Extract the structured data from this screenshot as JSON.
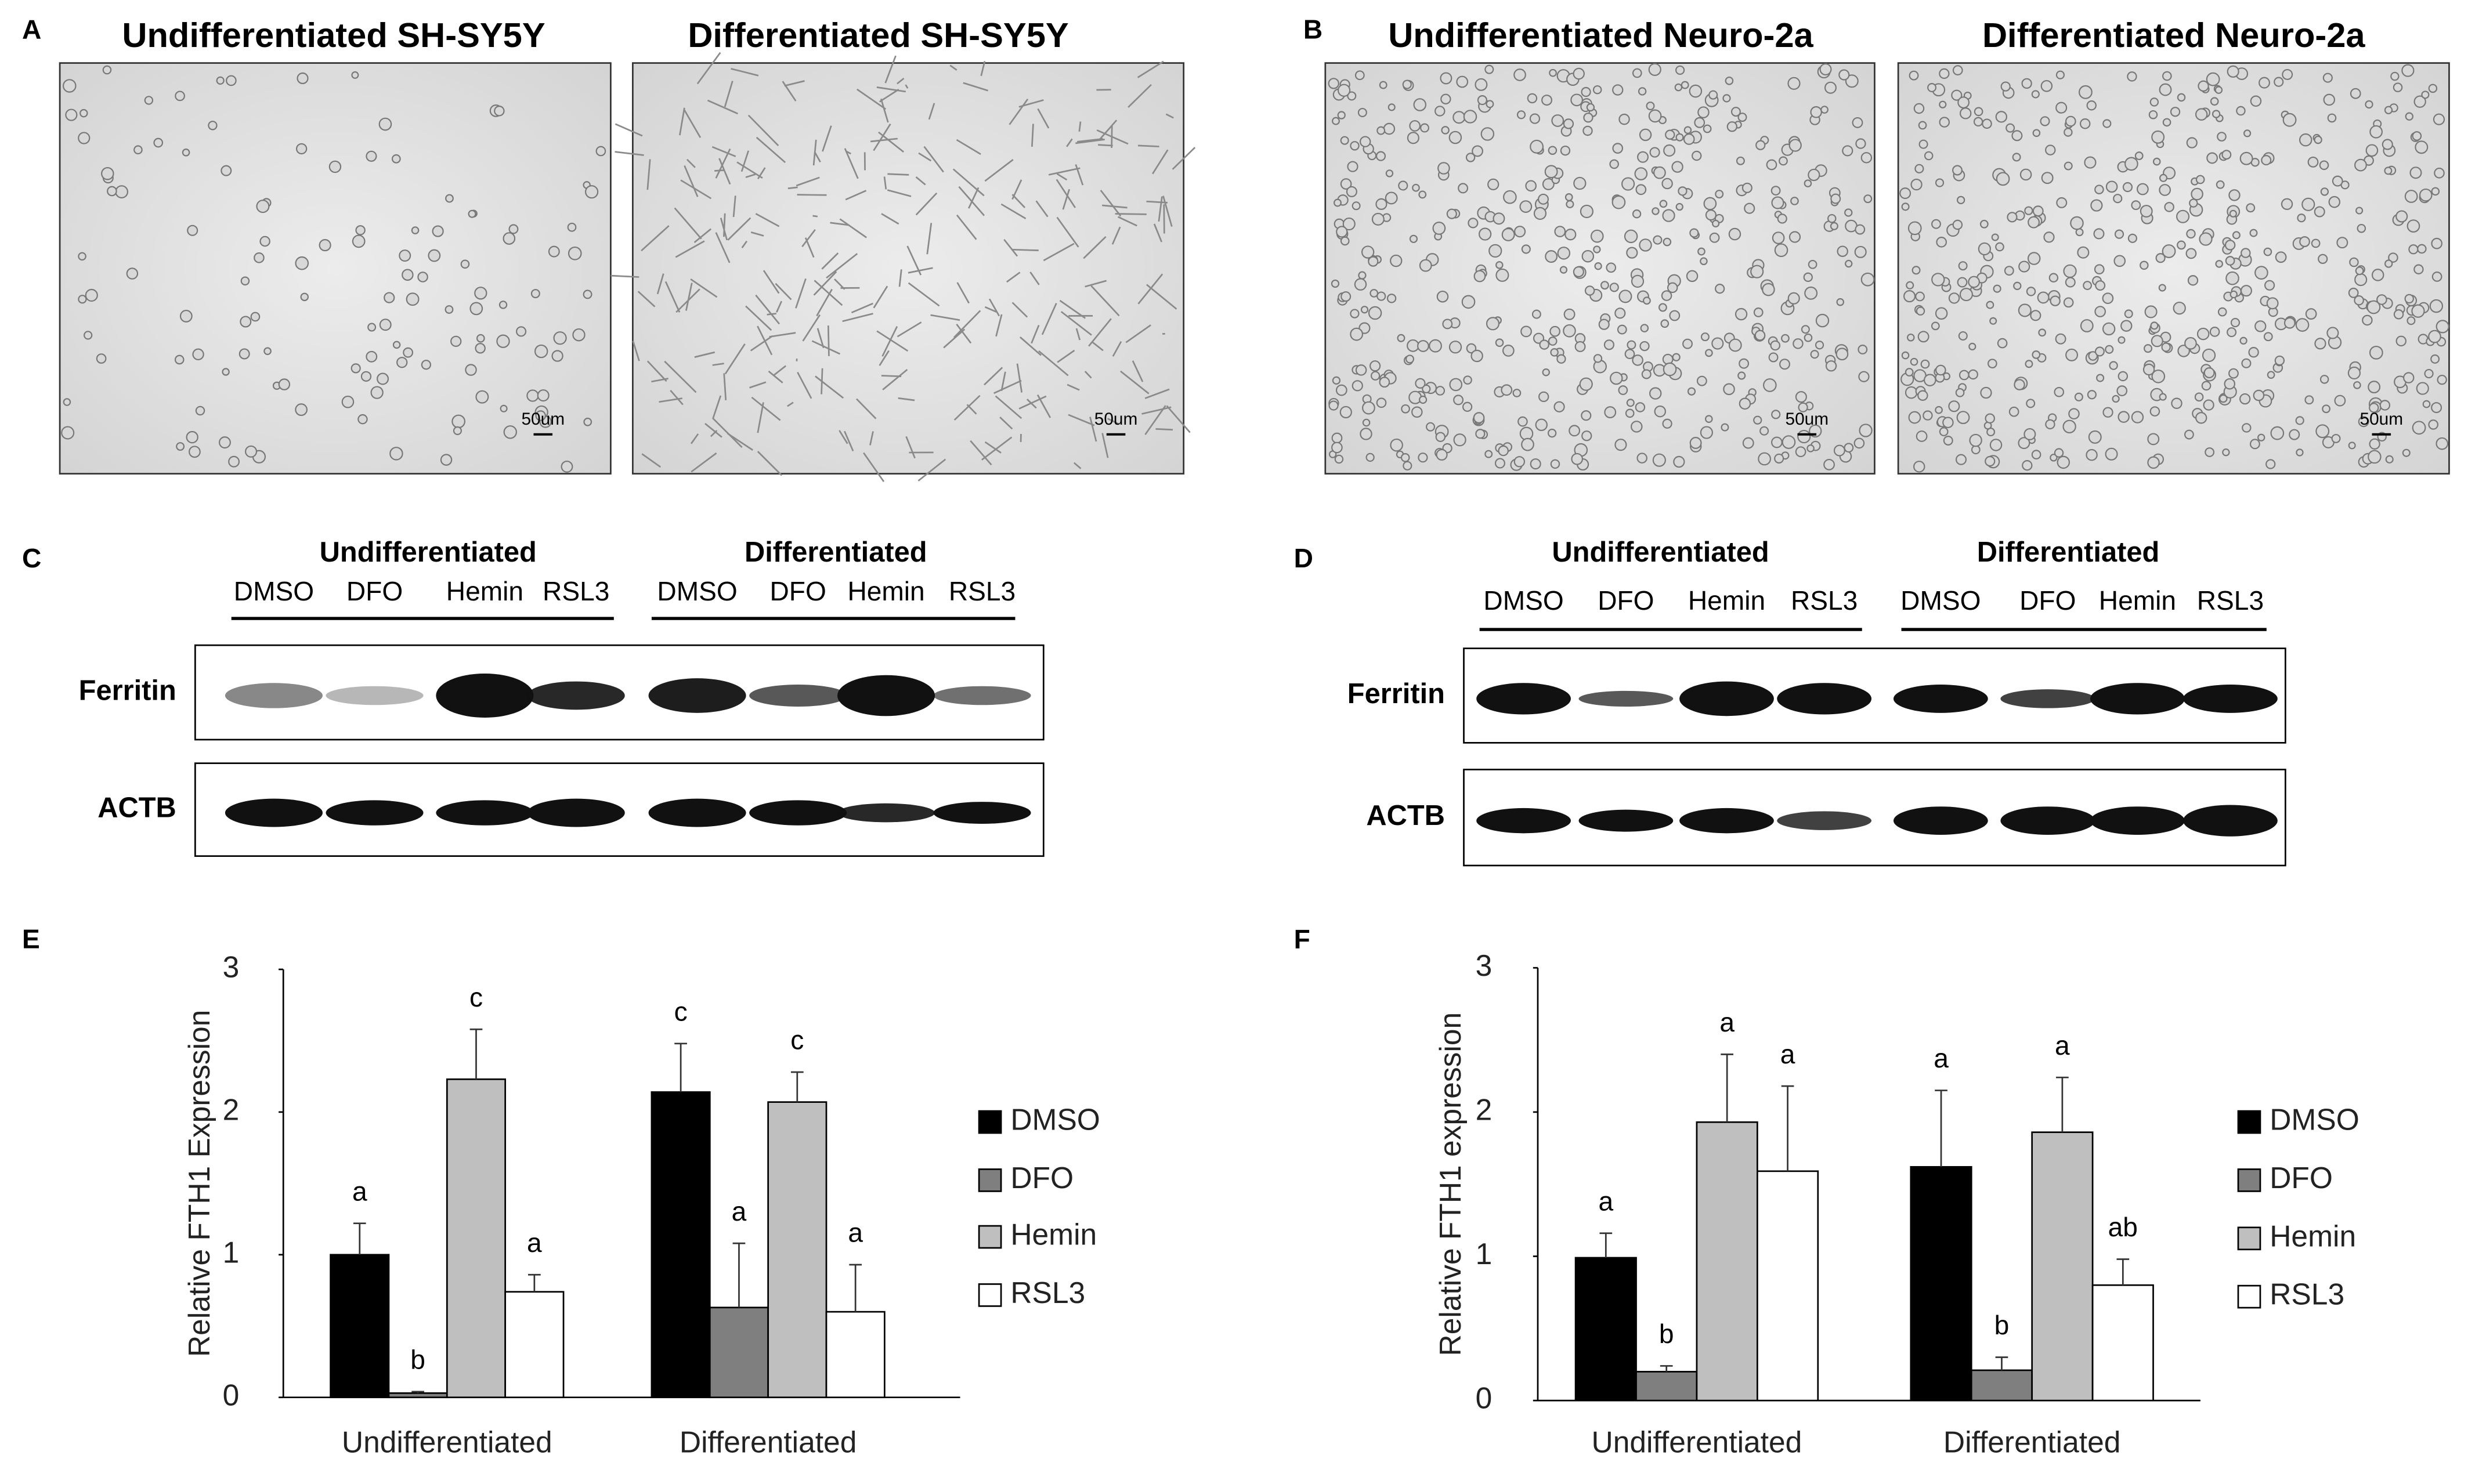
{
  "panel_labels": [
    "A",
    "B",
    "C",
    "D",
    "E",
    "F"
  ],
  "micrographs": [
    {
      "title": "Undifferentiated SH-SY5Y",
      "scale": "50um"
    },
    {
      "title": "Differentiated SH-SY5Y",
      "scale": "50um"
    },
    {
      "title": "Undifferentiated Neuro-2a",
      "scale": "50um"
    },
    {
      "title": "Differentiated Neuro-2a",
      "scale": "50um"
    }
  ],
  "blots": [
    {
      "groups": [
        "Undifferentiated",
        "Differentiated"
      ],
      "lanes": [
        "DMSO",
        "DFO",
        "Hemin",
        "RSL3",
        "DMSO",
        "DFO",
        "Hemin",
        "RSL3"
      ],
      "rows": [
        "Ferritin",
        "ACTB"
      ]
    },
    {
      "groups": [
        "Undifferentiated",
        "Differentiated"
      ],
      "lanes": [
        "DMSO",
        "DFO",
        "Hemin",
        "RSL3",
        "DMSO",
        "DFO",
        "Hemin",
        "RSL3"
      ],
      "rows": [
        "Ferritin",
        "ACTB"
      ]
    }
  ],
  "chart_data": [
    {
      "type": "bar",
      "y_label": "Relative FTH1 Expression",
      "categories": [
        "Undifferentiated",
        "Differentiated"
      ],
      "series": [
        {
          "name": "DMSO",
          "color": "#000000",
          "values": [
            1.0,
            2.14
          ],
          "errors": [
            0.22,
            0.34
          ],
          "letters": [
            "a",
            "c"
          ]
        },
        {
          "name": "DFO",
          "color": "#7f7f7f",
          "values": [
            0.03,
            0.63
          ],
          "errors": [
            0.01,
            0.45
          ],
          "letters": [
            "b",
            "a"
          ]
        },
        {
          "name": "Hemin",
          "color": "#bfbfbf",
          "values": [
            2.23,
            2.07
          ],
          "errors": [
            0.35,
            0.21
          ],
          "letters": [
            "c",
            "c"
          ]
        },
        {
          "name": "RSL3",
          "color": "#ffffff",
          "values": [
            0.74,
            0.6
          ],
          "errors": [
            0.12,
            0.33
          ],
          "letters": [
            "a",
            "a"
          ]
        }
      ],
      "ylim": [
        0,
        3
      ],
      "yticks": [
        0,
        1,
        2,
        3
      ],
      "legend": "right"
    },
    {
      "type": "bar",
      "y_label": "Relative FTH1 expression",
      "categories": [
        "Undifferentiated",
        "Differentiated"
      ],
      "series": [
        {
          "name": "DMSO",
          "color": "#000000",
          "values": [
            0.99,
            1.62
          ],
          "errors": [
            0.17,
            0.53
          ],
          "letters": [
            "a",
            "a"
          ]
        },
        {
          "name": "DFO",
          "color": "#7f7f7f",
          "values": [
            0.2,
            0.21
          ],
          "errors": [
            0.04,
            0.09
          ],
          "letters": [
            "b",
            "b"
          ]
        },
        {
          "name": "Hemin",
          "color": "#bfbfbf",
          "values": [
            1.93,
            1.86
          ],
          "errors": [
            0.47,
            0.38
          ],
          "letters": [
            "a",
            "a"
          ]
        },
        {
          "name": "RSL3",
          "color": "#ffffff",
          "values": [
            1.59,
            0.8
          ],
          "errors": [
            0.59,
            0.18
          ],
          "letters": [
            "a",
            "ab"
          ]
        }
      ],
      "ylim": [
        0,
        3
      ],
      "yticks": [
        0,
        1,
        2,
        3
      ],
      "legend": "right"
    }
  ]
}
